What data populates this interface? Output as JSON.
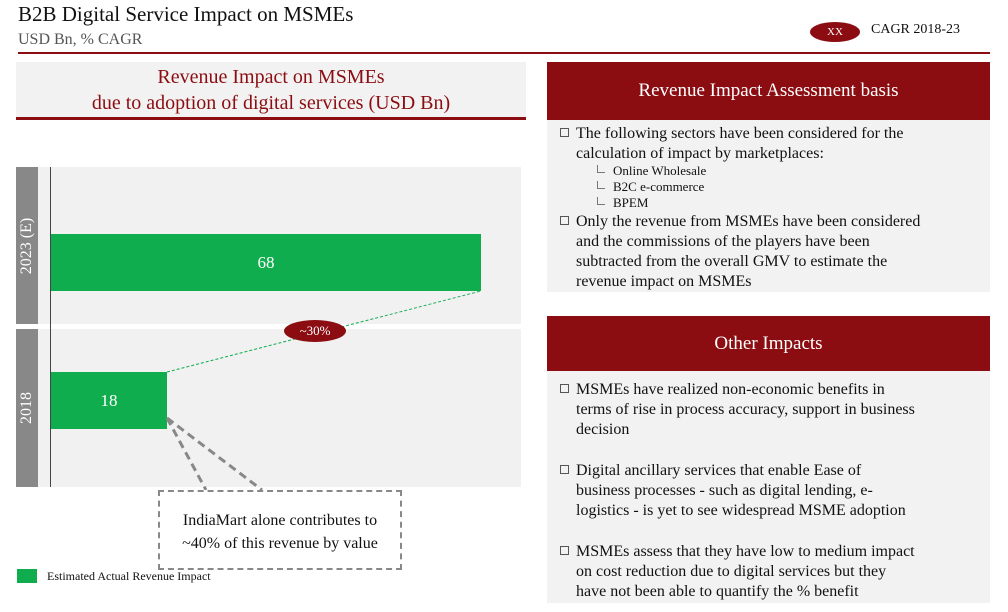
{
  "header": {
    "title": "B2B Digital Service Impact on MSMEs",
    "subtitle": "USD Bn, % CAGR",
    "cagr_badge": "XX",
    "cagr_label": "CAGR 2018-23"
  },
  "colors": {
    "accent": "#8b0d12",
    "bar": "#10ad4f",
    "band": "#f1f1f1",
    "year_label": "#888888"
  },
  "chart_data": {
    "type": "bar",
    "orientation": "horizontal",
    "title": "Revenue Impact on MSMEs due to adoption of digital services (USD Bn)",
    "title_lines": [
      "Revenue Impact on MSMEs",
      "due to adoption of digital services (USD Bn)"
    ],
    "categories": [
      "2023 (E)",
      "2018"
    ],
    "series": [
      {
        "name": "Estimated Actual Revenue Impact",
        "values": [
          68,
          18
        ]
      }
    ],
    "data_labels": [
      "68",
      "18"
    ],
    "growth_annotation": "~30%",
    "callout": [
      "IndiaMart alone contributes to",
      "~40% of this revenue by value"
    ],
    "legend": "bottom-left"
  },
  "assessment": {
    "title": "Revenue Impact Assessment basis",
    "bullet1": [
      "The following sectors have been considered for the",
      "calculation of impact by marketplaces:"
    ],
    "sectors": [
      "Online Wholesale",
      "B2C e-commerce",
      "BPEM"
    ],
    "bullet2": [
      "Only the revenue from MSMEs have been considered",
      "and the commissions of the players have been",
      "subtracted from the overall GMV to estimate the",
      "revenue impact on MSMEs"
    ]
  },
  "other": {
    "title": "Other Impacts",
    "bullets": [
      [
        "MSMEs have realized non-economic benefits in",
        "terms of rise in process accuracy, support in business",
        "decision"
      ],
      [
        "Digital ancillary services that enable Ease of",
        "business processes - such as digital lending, e-",
        "logistics - is yet to see widespread MSME adoption"
      ],
      [
        "MSMEs assess that they have low to medium impact",
        "on cost reduction due to digital services but they",
        "have not been able to quantify the % benefit"
      ]
    ]
  }
}
